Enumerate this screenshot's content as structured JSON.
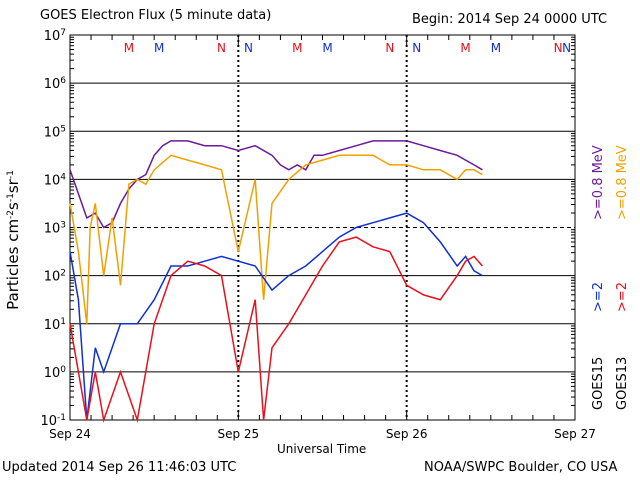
{
  "chart_data": {
    "type": "line",
    "title": "GOES Electron Flux (5 minute data)",
    "begin_label": "Begin: 2014 Sep 24 0000 UTC",
    "xlabel": "Universal Time",
    "ylabel_html": "Particles cm<tspan baseline-shift=\"super\" font-size=\"9\">-2</tspan>s<tspan baseline-shift=\"super\" font-size=\"9\">-1</tspan>sr<tspan baseline-shift=\"super\" font-size=\"9\">-1</tspan>",
    "ylabel_plain": "Particles cm-2s-1sr-1",
    "x_ticks": [
      "Sep 24",
      "Sep 25",
      "Sep 26",
      "Sep 27"
    ],
    "y_ticks": [
      "-1",
      "0",
      "1",
      "2",
      "3",
      "4",
      "5",
      "6",
      "7"
    ],
    "ylim_log10": [
      -1,
      7
    ],
    "xlim_days": [
      0,
      3
    ],
    "ylog": true,
    "markers": [
      {
        "label": "M",
        "t": 0.35,
        "color": "#e8101a"
      },
      {
        "label": "M",
        "t": 0.53,
        "color": "#1030d0"
      },
      {
        "label": "N",
        "t": 0.9,
        "color": "#e8101a"
      },
      {
        "label": "N",
        "t": 1.06,
        "color": "#1030d0"
      },
      {
        "label": "M",
        "t": 1.35,
        "color": "#e8101a"
      },
      {
        "label": "M",
        "t": 1.53,
        "color": "#1030d0"
      },
      {
        "label": "N",
        "t": 1.9,
        "color": "#e8101a"
      },
      {
        "label": "N",
        "t": 2.06,
        "color": "#1030d0"
      },
      {
        "label": "M",
        "t": 2.35,
        "color": "#e8101a"
      },
      {
        "label": "M",
        "t": 2.53,
        "color": "#1030d0"
      },
      {
        "label": "N",
        "t": 2.9,
        "color": "#e8101a"
      },
      {
        "label": "N",
        "t": 3.06,
        "color": "#1030d0"
      }
    ],
    "legend": [
      {
        "text": ">=0.8 MeV",
        "color": "#6a1a9a"
      },
      {
        "text": ">=0.8 MeV",
        "color": "#f0a000"
      },
      {
        "text": ">=2",
        "color": "#1030d0"
      },
      {
        "text": ">=2",
        "color": "#e8101a"
      },
      {
        "text": "GOES15",
        "color": "#000000"
      },
      {
        "text": "GOES13",
        "color": "#000000"
      }
    ],
    "series": [
      {
        "name": "GOES15 >=0.8 MeV",
        "color": "#6a1a9a",
        "x": [
          0,
          0.05,
          0.1,
          0.15,
          0.2,
          0.25,
          0.3,
          0.35,
          0.4,
          0.45,
          0.5,
          0.55,
          0.6,
          0.7,
          0.8,
          0.9,
          1.0,
          1.1,
          1.2,
          1.25,
          1.3,
          1.35,
          1.4,
          1.45,
          1.5,
          1.6,
          1.7,
          1.8,
          1.9,
          2.0,
          2.1,
          2.2,
          2.3,
          2.35,
          2.4,
          2.45
        ],
        "y": [
          4.2,
          3.7,
          3.2,
          3.3,
          3.0,
          3.1,
          3.5,
          3.8,
          4.0,
          4.1,
          4.5,
          4.7,
          4.8,
          4.8,
          4.7,
          4.7,
          4.6,
          4.7,
          4.5,
          4.3,
          4.2,
          4.3,
          4.2,
          4.5,
          4.5,
          4.6,
          4.7,
          4.8,
          4.8,
          4.8,
          4.7,
          4.6,
          4.5,
          4.4,
          4.3,
          4.2
        ]
      },
      {
        "name": "GOES13 >=0.8 MeV",
        "color": "#f0a000",
        "x": [
          0,
          0.05,
          0.1,
          0.12,
          0.15,
          0.2,
          0.25,
          0.3,
          0.35,
          0.4,
          0.45,
          0.5,
          0.6,
          0.7,
          0.8,
          0.9,
          1.0,
          1.1,
          1.15,
          1.2,
          1.3,
          1.4,
          1.5,
          1.6,
          1.7,
          1.8,
          1.9,
          2.0,
          2.1,
          2.2,
          2.3,
          2.35,
          2.4,
          2.45
        ],
        "y": [
          3.5,
          2.5,
          1.0,
          3.0,
          3.5,
          2.0,
          3.2,
          1.8,
          3.9,
          4.0,
          3.9,
          4.2,
          4.5,
          4.4,
          4.3,
          4.2,
          2.5,
          4.0,
          1.5,
          3.5,
          4.0,
          4.3,
          4.4,
          4.5,
          4.5,
          4.5,
          4.3,
          4.3,
          4.2,
          4.2,
          4.0,
          4.2,
          4.2,
          4.1
        ]
      },
      {
        "name": "GOES15 >=2",
        "color": "#1030d0",
        "x": [
          0,
          0.05,
          0.1,
          0.15,
          0.2,
          0.3,
          0.4,
          0.5,
          0.6,
          0.7,
          0.8,
          0.9,
          1.0,
          1.1,
          1.2,
          1.3,
          1.4,
          1.5,
          1.6,
          1.7,
          1.8,
          1.9,
          2.0,
          2.1,
          2.2,
          2.3,
          2.35,
          2.4,
          2.45
        ],
        "y": [
          2.5,
          1.5,
          -1.0,
          0.5,
          0.0,
          1.0,
          1.0,
          1.5,
          2.2,
          2.2,
          2.3,
          2.4,
          2.3,
          2.2,
          1.7,
          2.0,
          2.2,
          2.5,
          2.8,
          3.0,
          3.1,
          3.2,
          3.3,
          3.1,
          2.7,
          2.2,
          2.4,
          2.1,
          2.0
        ]
      },
      {
        "name": "GOES13 >=2",
        "color": "#e8101a",
        "x": [
          0,
          0.05,
          0.1,
          0.15,
          0.2,
          0.3,
          0.4,
          0.5,
          0.6,
          0.7,
          0.8,
          0.9,
          1.0,
          1.1,
          1.15,
          1.2,
          1.3,
          1.4,
          1.5,
          1.6,
          1.7,
          1.8,
          1.9,
          2.0,
          2.1,
          2.2,
          2.3,
          2.35,
          2.4,
          2.45
        ],
        "y": [
          1.0,
          0.0,
          -1.0,
          0.0,
          -1.0,
          0.0,
          -1.0,
          1.0,
          2.0,
          2.3,
          2.2,
          2.0,
          0.0,
          1.5,
          -1.0,
          0.5,
          1.0,
          1.6,
          2.2,
          2.7,
          2.8,
          2.6,
          2.5,
          1.8,
          1.6,
          1.5,
          2.0,
          2.3,
          2.4,
          2.2
        ]
      }
    ]
  },
  "footer_left": "Updated 2014 Sep 26 11:46:03 UTC",
  "footer_right": "NOAA/SWPC Boulder, CO USA"
}
